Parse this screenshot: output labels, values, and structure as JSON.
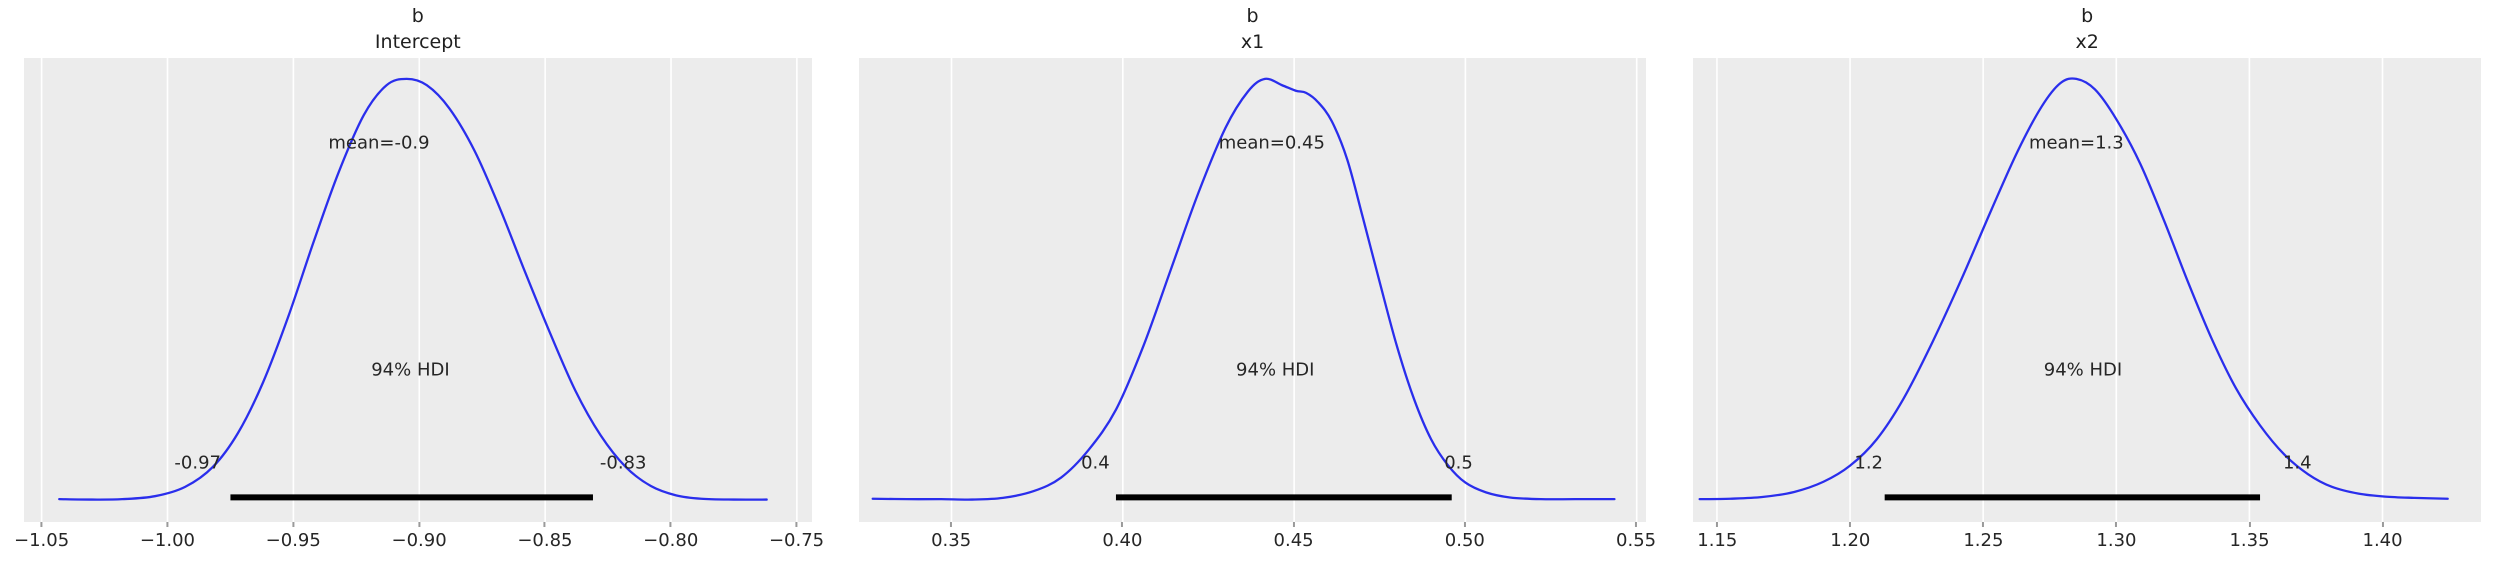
{
  "figure_title": "",
  "hdi_text": "94% HDI",
  "style": {
    "curve_color": "#2a2eec",
    "hdi_bar_color": "#000000",
    "plot_bg": "#ececec",
    "grid_color": "#ffffff",
    "text_color": "#262626",
    "tick_mark_color": "#9a9a9a"
  },
  "chart_data": {
    "type": "kde",
    "description": "Posterior density plots with mean and 94% HDI annotations (ArviZ plot_posterior style)",
    "hdi_prob": 0.94,
    "layout": {
      "grid": "vertical-white-gridlines",
      "mean_y_frac": 0.183,
      "hdi_text_y_frac": 0.672,
      "hdi_label_y_frac": 0.873,
      "bar_y_frac": 0.947,
      "baseline_y_frac": 0.959,
      "peak_y_frac": 0.045,
      "tick_font_px": 18,
      "annotation_font_px": 18
    },
    "panels": [
      {
        "title_line1": "b",
        "title_line2": "Intercept",
        "xlim": [
          -1.057,
          -0.744
        ],
        "ticks": [
          {
            "v": -1.05,
            "label": "−1.05"
          },
          {
            "v": -1.0,
            "label": "−1.00"
          },
          {
            "v": -0.95,
            "label": "−0.95"
          },
          {
            "v": -0.9,
            "label": "−0.90"
          },
          {
            "v": -0.85,
            "label": "−0.85"
          },
          {
            "v": -0.8,
            "label": "−0.80"
          },
          {
            "v": -0.75,
            "label": "−0.75"
          }
        ],
        "mean": {
          "value": -0.9,
          "label": "mean=-0.9",
          "label_x": -0.916
        },
        "hdi": {
          "lower": -0.97,
          "upper": -0.83,
          "bar_start": -0.975,
          "bar_end": -0.831,
          "label_x": -0.9035,
          "lower_label": "-0.97",
          "lower_label_x": -0.988,
          "upper_label": "-0.83",
          "upper_label_x": -0.819
        },
        "curve": [
          [
            -1.043,
            0.009
          ],
          [
            -1.03,
            0.008
          ],
          [
            -1.018,
            0.009
          ],
          [
            -1.005,
            0.016
          ],
          [
            -0.993,
            0.038
          ],
          [
            -0.982,
            0.085
          ],
          [
            -0.972,
            0.165
          ],
          [
            -0.962,
            0.285
          ],
          [
            -0.952,
            0.44
          ],
          [
            -0.942,
            0.615
          ],
          [
            -0.932,
            0.78
          ],
          [
            -0.922,
            0.915
          ],
          [
            -0.913,
            0.985
          ],
          [
            -0.905,
            1.0
          ],
          [
            -0.897,
            0.985
          ],
          [
            -0.888,
            0.93
          ],
          [
            -0.878,
            0.83
          ],
          [
            -0.868,
            0.695
          ],
          [
            -0.858,
            0.545
          ],
          [
            -0.848,
            0.4
          ],
          [
            -0.838,
            0.265
          ],
          [
            -0.828,
            0.16
          ],
          [
            -0.818,
            0.085
          ],
          [
            -0.808,
            0.04
          ],
          [
            -0.798,
            0.018
          ],
          [
            -0.788,
            0.01
          ],
          [
            -0.775,
            0.008
          ],
          [
            -0.762,
            0.008
          ]
        ]
      },
      {
        "title_line1": "b",
        "title_line2": "x1",
        "xlim": [
          0.323,
          0.553
        ],
        "ticks": [
          {
            "v": 0.35,
            "label": "0.35"
          },
          {
            "v": 0.4,
            "label": "0.40"
          },
          {
            "v": 0.45,
            "label": "0.45"
          },
          {
            "v": 0.5,
            "label": "0.50"
          },
          {
            "v": 0.55,
            "label": "0.55"
          }
        ],
        "mean": {
          "value": 0.45,
          "label": "mean=0.45",
          "label_x": 0.4435
        },
        "hdi": {
          "lower": 0.4,
          "upper": 0.5,
          "bar_start": 0.398,
          "bar_end": 0.496,
          "label_x": 0.4445,
          "lower_label": "0.4",
          "lower_label_x": 0.392,
          "upper_label": "0.5",
          "upper_label_x": 0.498
        },
        "curve": [
          [
            0.327,
            0.01
          ],
          [
            0.337,
            0.009
          ],
          [
            0.347,
            0.009
          ],
          [
            0.356,
            0.008
          ],
          [
            0.365,
            0.012
          ],
          [
            0.374,
            0.028
          ],
          [
            0.382,
            0.06
          ],
          [
            0.39,
            0.125
          ],
          [
            0.398,
            0.22
          ],
          [
            0.406,
            0.37
          ],
          [
            0.414,
            0.55
          ],
          [
            0.422,
            0.73
          ],
          [
            0.43,
            0.885
          ],
          [
            0.4365,
            0.97
          ],
          [
            0.4415,
            1.0
          ],
          [
            0.4465,
            0.985
          ],
          [
            0.4505,
            0.972
          ],
          [
            0.4535,
            0.967
          ],
          [
            0.457,
            0.945
          ],
          [
            0.461,
            0.9
          ],
          [
            0.4655,
            0.81
          ],
          [
            0.47,
            0.675
          ],
          [
            0.475,
            0.52
          ],
          [
            0.48,
            0.37
          ],
          [
            0.485,
            0.245
          ],
          [
            0.49,
            0.15
          ],
          [
            0.495,
            0.088
          ],
          [
            0.5,
            0.048
          ],
          [
            0.506,
            0.025
          ],
          [
            0.513,
            0.013
          ],
          [
            0.522,
            0.009
          ],
          [
            0.532,
            0.009
          ],
          [
            0.5435,
            0.009
          ]
        ]
      },
      {
        "title_line1": "b",
        "title_line2": "x2",
        "xlim": [
          1.141,
          1.437
        ],
        "ticks": [
          {
            "v": 1.15,
            "label": "1.15"
          },
          {
            "v": 1.2,
            "label": "1.20"
          },
          {
            "v": 1.25,
            "label": "1.25"
          },
          {
            "v": 1.3,
            "label": "1.30"
          },
          {
            "v": 1.35,
            "label": "1.35"
          },
          {
            "v": 1.4,
            "label": "1.40"
          }
        ],
        "mean": {
          "value": 1.3,
          "label": "mean=1.3",
          "label_x": 1.285
        },
        "hdi": {
          "lower": 1.2,
          "upper": 1.4,
          "bar_start": 1.213,
          "bar_end": 1.354,
          "label_x": 1.2875,
          "lower_label": "1.2",
          "lower_label_x": 1.207,
          "upper_label": "1.4",
          "upper_label_x": 1.368
        },
        "curve": [
          [
            1.1435,
            0.009
          ],
          [
            1.155,
            0.01
          ],
          [
            1.167,
            0.014
          ],
          [
            1.179,
            0.026
          ],
          [
            1.19,
            0.05
          ],
          [
            1.2,
            0.088
          ],
          [
            1.21,
            0.15
          ],
          [
            1.22,
            0.245
          ],
          [
            1.231,
            0.38
          ],
          [
            1.242,
            0.53
          ],
          [
            1.253,
            0.69
          ],
          [
            1.263,
            0.83
          ],
          [
            1.272,
            0.935
          ],
          [
            1.279,
            0.99
          ],
          [
            1.285,
            1.0
          ],
          [
            1.292,
            0.975
          ],
          [
            1.3,
            0.905
          ],
          [
            1.309,
            0.8
          ],
          [
            1.318,
            0.665
          ],
          [
            1.327,
            0.52
          ],
          [
            1.336,
            0.385
          ],
          [
            1.345,
            0.27
          ],
          [
            1.354,
            0.183
          ],
          [
            1.363,
            0.115
          ],
          [
            1.372,
            0.068
          ],
          [
            1.381,
            0.038
          ],
          [
            1.391,
            0.022
          ],
          [
            1.401,
            0.015
          ],
          [
            1.412,
            0.012
          ],
          [
            1.4245,
            0.01
          ]
        ]
      }
    ]
  }
}
